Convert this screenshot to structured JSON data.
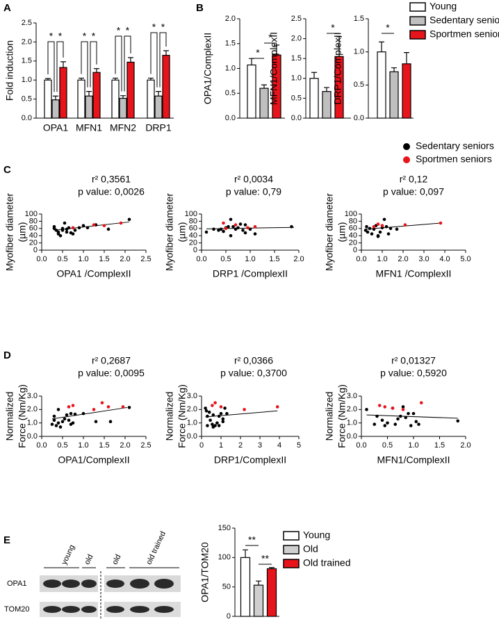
{
  "panel_labels": [
    "A",
    "B",
    "C",
    "D",
    "E"
  ],
  "chart_data": [
    {
      "type": "bar",
      "ylabel": "Fold induction",
      "categories": [
        "OPA1",
        "MFN1",
        "MFN2",
        "DRP1"
      ],
      "ylim": [
        0,
        2.5
      ],
      "yticks": [
        {
          "value": 0,
          "label": "0.0"
        },
        0.5,
        {
          "value": 1,
          "label": "1.0"
        },
        1.5,
        {
          "value": 2,
          "label": "2.0"
        },
        2.5
      ],
      "series": [
        {
          "name": "Young",
          "color": "#ffffff",
          "values": [
            1.0,
            1.0,
            1.0,
            1.0
          ],
          "errors": [
            0.04,
            0.05,
            0.05,
            0.05
          ]
        },
        {
          "name": "Sedentary seniors",
          "color": "#bfbfbf",
          "values": [
            0.48,
            0.58,
            0.52,
            0.58
          ],
          "errors": [
            0.1,
            0.12,
            0.07,
            0.12
          ]
        },
        {
          "name": "Sportmen seniors",
          "color": "#e8141b",
          "values": [
            1.33,
            1.2,
            1.47,
            1.65
          ],
          "errors": [
            0.15,
            0.1,
            0.12,
            0.12
          ]
        }
      ],
      "annotations": [
        "*",
        "*",
        "*",
        "*",
        "*",
        "*",
        "*",
        "*"
      ]
    },
    {
      "type": "bar",
      "ylabel": "OPA1/ComplexII",
      "ylim": [
        0,
        2
      ],
      "yticks": [
        {
          "value": 0,
          "label": "0.0"
        },
        0.5,
        {
          "value": 1,
          "label": "1.0"
        },
        1.5,
        {
          "value": 2,
          "label": "2.0"
        }
      ],
      "series": [
        {
          "color": "#ffffff",
          "values": [
            1.07
          ],
          "errors": [
            0.13
          ]
        },
        {
          "color": "#bfbfbf",
          "values": [
            0.6
          ],
          "errors": [
            0.07
          ]
        },
        {
          "color": "#e8141b",
          "values": [
            1.27
          ],
          "errors": [
            0.2
          ]
        }
      ],
      "annotations": [
        "*",
        "*"
      ]
    },
    {
      "type": "bar",
      "ylabel": "MFN1/ComplexII",
      "ylim": [
        0,
        2.5
      ],
      "yticks": [
        {
          "value": 0,
          "label": "0.0"
        },
        0.5,
        {
          "value": 1,
          "label": "1.0"
        },
        1.5,
        {
          "value": 2,
          "label": "2.0"
        },
        2.5
      ],
      "series": [
        {
          "color": "#ffffff",
          "values": [
            1.0
          ],
          "errors": [
            0.15
          ]
        },
        {
          "color": "#bfbfbf",
          "values": [
            0.67
          ],
          "errors": [
            0.1
          ]
        },
        {
          "color": "#e8141b",
          "values": [
            1.55
          ],
          "errors": [
            0.5
          ]
        }
      ],
      "annotations": [
        "*"
      ]
    },
    {
      "type": "bar",
      "ylabel": "DRP1/ComplexII",
      "ylim": [
        0,
        1.5
      ],
      "yticks": [
        {
          "value": 0,
          "label": "0.0"
        },
        0.5,
        {
          "value": 1,
          "label": "1.0"
        },
        1.5
      ],
      "series": [
        {
          "color": "#ffffff",
          "values": [
            1.0
          ],
          "errors": [
            0.15
          ]
        },
        {
          "color": "#bfbfbf",
          "values": [
            0.7
          ],
          "errors": [
            0.06
          ]
        },
        {
          "color": "#e8141b",
          "values": [
            0.82
          ],
          "errors": [
            0.17
          ]
        }
      ],
      "annotations": [
        "*"
      ]
    },
    {
      "type": "scatter",
      "title": "r² 0,3561",
      "subtitle": "p value: 0,0026",
      "xlabel": "OPA1 /ComplexII",
      "ylabel": [
        "Myofiber diameter",
        "(µm)"
      ],
      "xlim": [
        0,
        2.5
      ],
      "xticks": [
        {
          "value": 0,
          "label": "0.0"
        },
        0.5,
        {
          "value": 1,
          "label": "1.0"
        },
        1.5,
        {
          "value": 2,
          "label": "2.0"
        },
        2.5
      ],
      "ylim": [
        0,
        100
      ],
      "yticks": [
        0,
        20,
        40,
        60,
        80,
        100
      ],
      "series": [
        {
          "name": "Sedentary seniors",
          "color": "#000000",
          "x": [
            0.3,
            0.35,
            0.4,
            0.4,
            0.45,
            0.5,
            0.5,
            0.55,
            0.6,
            0.6,
            0.65,
            0.7,
            0.75,
            0.8,
            0.9,
            1.0,
            1.1,
            1.3,
            1.6,
            2.1,
            0.3
          ],
          "values": [
            65,
            55,
            50,
            45,
            40,
            60,
            55,
            75,
            58,
            50,
            62,
            48,
            45,
            55,
            62,
            68,
            62,
            70,
            58,
            85,
            60
          ]
        },
        {
          "name": "Sportmen seniors",
          "color": "#e8141b",
          "x": [
            0.75,
            1.25,
            1.5,
            1.9
          ],
          "values": [
            62,
            70,
            68,
            75
          ]
        }
      ],
      "fit": {
        "x": [
          0.3,
          2.1
        ],
        "values": [
          55,
          78
        ]
      }
    },
    {
      "type": "scatter",
      "title": "r² 0,0034",
      "subtitle": "p value: 0,79",
      "xlabel": "DRP1 /ComplexII",
      "ylabel": [
        "Myofiber diameter",
        "(µm)"
      ],
      "xlim": [
        0,
        2
      ],
      "xticks": [
        {
          "value": 0,
          "label": "0.0"
        },
        0.5,
        {
          "value": 1,
          "label": "1.0"
        },
        1.5,
        {
          "value": 2,
          "label": "2.0"
        }
      ],
      "ylim": [
        0,
        100
      ],
      "yticks": [
        0,
        20,
        40,
        60,
        80,
        100
      ],
      "series": [
        {
          "color": "#000000",
          "x": [
            0.1,
            0.25,
            0.35,
            0.4,
            0.45,
            0.5,
            0.55,
            0.6,
            0.65,
            0.7,
            0.75,
            0.8,
            0.85,
            0.9,
            1.0,
            1.1,
            0.6,
            0.9,
            1.85
          ],
          "values": [
            50,
            58,
            55,
            58,
            52,
            62,
            65,
            40,
            65,
            58,
            62,
            72,
            55,
            48,
            58,
            45,
            85,
            70,
            65
          ]
        },
        {
          "color": "#e8141b",
          "x": [
            0.45,
            0.7,
            0.95,
            1.1,
            0.5
          ],
          "values": [
            75,
            70,
            62,
            65,
            60
          ]
        }
      ],
      "fit": {
        "x": [
          0.1,
          1.9
        ],
        "values": [
          59,
          63
        ]
      }
    },
    {
      "type": "scatter",
      "title": "r² 0,12",
      "subtitle": "p value: 0,097",
      "xlabel": "MFN1 /ComplexII",
      "ylabel": [
        "Myofiber diameter",
        "(µm)"
      ],
      "xlim": [
        0,
        5
      ],
      "xticks": [
        {
          "value": 0,
          "label": "0.0"
        },
        {
          "value": 1,
          "label": "1.0"
        },
        {
          "value": 2,
          "label": "2.0"
        },
        {
          "value": 3,
          "label": "3.0"
        },
        {
          "value": 4,
          "label": "4.0"
        },
        {
          "value": 5,
          "label": "5.0"
        }
      ],
      "ylim": [
        0,
        100
      ],
      "yticks": [
        0,
        20,
        40,
        60,
        80,
        100
      ],
      "series": [
        {
          "color": "#000000",
          "x": [
            0.2,
            0.3,
            0.4,
            0.5,
            0.6,
            0.7,
            0.8,
            0.9,
            1.0,
            1.1,
            1.2,
            1.3,
            1.4,
            1.7,
            0.25,
            0.8
          ],
          "values": [
            55,
            50,
            60,
            45,
            58,
            68,
            38,
            50,
            62,
            85,
            65,
            45,
            60,
            58,
            65,
            40
          ]
        },
        {
          "color": "#e8141b",
          "x": [
            0.6,
            0.8,
            1.0,
            2.1,
            3.8
          ],
          "values": [
            65,
            72,
            68,
            70,
            75
          ]
        }
      ],
      "fit": {
        "x": [
          0.2,
          3.8
        ],
        "values": [
          58,
          75
        ]
      }
    },
    {
      "type": "scatter",
      "title": "r² 0,2687",
      "subtitle": "p value: 0,0095",
      "xlabel": "OPA1/ComplexII",
      "ylabel": [
        "Normalized",
        "Force (Nm/Kg)"
      ],
      "xlim": [
        0,
        2.5
      ],
      "xticks": [
        {
          "value": 0,
          "label": "0.0"
        },
        0.5,
        {
          "value": 1,
          "label": "1.0"
        },
        1.5,
        {
          "value": 2,
          "label": "2.0"
        },
        2.5
      ],
      "ylim": [
        0,
        3
      ],
      "yticks": [
        {
          "value": 0,
          "label": "0.0"
        },
        {
          "value": 1,
          "label": "1.0"
        },
        {
          "value": 2,
          "label": "2.0"
        },
        {
          "value": 3,
          "label": "3.0"
        }
      ],
      "series": [
        {
          "color": "#000000",
          "x": [
            0.25,
            0.3,
            0.35,
            0.4,
            0.4,
            0.45,
            0.5,
            0.55,
            0.6,
            0.65,
            0.7,
            0.75,
            0.7,
            0.8,
            1.0,
            1.3,
            1.65,
            2.1,
            0.3
          ],
          "values": [
            0.9,
            1.2,
            0.8,
            1.0,
            2.0,
            0.7,
            1.1,
            1.3,
            1.6,
            1.2,
            0.9,
            1.0,
            1.7,
            1.65,
            1.7,
            1.1,
            1.1,
            2.15,
            1.5
          ]
        },
        {
          "color": "#e8141b",
          "x": [
            0.65,
            0.75,
            1.25,
            1.45,
            1.6,
            1.95
          ],
          "values": [
            2.2,
            2.3,
            2.0,
            2.5,
            2.2,
            2.2
          ]
        }
      ],
      "fit": {
        "x": [
          0.25,
          2.05
        ],
        "values": [
          1.3,
          2.15
        ]
      }
    },
    {
      "type": "scatter",
      "title": "r² 0,0366",
      "subtitle": "p value: 0,3700",
      "xlabel": "DRP1/ComplexII",
      "ylabel": [
        "Normalized",
        "Force (Nm/Kg)"
      ],
      "xlim": [
        0,
        5
      ],
      "xticks": [
        0,
        1,
        2,
        3,
        4,
        5
      ],
      "ylim": [
        0,
        3
      ],
      "yticks": [
        {
          "value": 0,
          "label": "0.0"
        },
        {
          "value": 1,
          "label": "1.0"
        },
        {
          "value": 2,
          "label": "2.0"
        },
        {
          "value": 3,
          "label": "3.0"
        }
      ],
      "series": [
        {
          "color": "#000000",
          "x": [
            0.2,
            0.3,
            0.3,
            0.4,
            0.45,
            0.55,
            0.6,
            0.7,
            0.8,
            0.9,
            1.0,
            1.1,
            1.2,
            1.3,
            0.25,
            0.6,
            1.1,
            0.9
          ],
          "values": [
            2.1,
            1.5,
            0.8,
            1.8,
            1.2,
            0.9,
            0.7,
            0.8,
            1.0,
            1.5,
            1.7,
            1.1,
            2.1,
            1.7,
            1.9,
            1.6,
            1.3,
            0.8
          ]
        },
        {
          "color": "#e8141b",
          "x": [
            0.55,
            0.7,
            1.0,
            2.2,
            3.9
          ],
          "values": [
            2.3,
            2.5,
            2.2,
            2.0,
            2.2
          ]
        }
      ],
      "fit": {
        "x": [
          0.2,
          3.9
        ],
        "values": [
          1.45,
          1.9
        ]
      }
    },
    {
      "type": "scatter",
      "title": "r² 0,01327",
      "subtitle": "p value: 0,5920",
      "xlabel": "MFN1/ComplexII",
      "ylabel": [
        "Normalized",
        "Force (Nm/Kg)"
      ],
      "xlim": [
        0,
        2
      ],
      "xticks": [
        {
          "value": 0,
          "label": "0.0"
        },
        0.5,
        {
          "value": 1,
          "label": "1.0"
        },
        1.5,
        {
          "value": 2,
          "label": "2.0"
        }
      ],
      "ylim": [
        0,
        3
      ],
      "yticks": [
        {
          "value": 0,
          "label": "0.0"
        },
        {
          "value": 1,
          "label": "1.0"
        },
        {
          "value": 2,
          "label": "2.0"
        },
        {
          "value": 3,
          "label": "3.0"
        }
      ],
      "series": [
        {
          "color": "#000000",
          "x": [
            0.1,
            0.25,
            0.3,
            0.4,
            0.45,
            0.5,
            0.6,
            0.7,
            0.75,
            0.8,
            0.85,
            0.9,
            0.95,
            1.0,
            1.05,
            1.1,
            1.85,
            0.65
          ],
          "values": [
            2.0,
            0.9,
            1.5,
            1.2,
            0.8,
            1.0,
            2.1,
            1.3,
            1.5,
            2.2,
            1.4,
            1.7,
            0.8,
            1.7,
            1.1,
            0.9,
            1.15,
            0.9
          ]
        },
        {
          "color": "#e8141b",
          "x": [
            0.35,
            0.45,
            0.6,
            0.8,
            1.15
          ],
          "values": [
            2.3,
            2.2,
            2.1,
            2.0,
            2.5
          ]
        }
      ],
      "fit": {
        "x": [
          0.1,
          1.85
        ],
        "values": [
          1.6,
          1.35
        ]
      }
    },
    {
      "type": "bar",
      "ylabel": "OPA1/TOM20",
      "ylim": [
        0,
        150
      ],
      "yticks": [
        0,
        50,
        100,
        150
      ],
      "series": [
        {
          "name": "Young",
          "color": "#ffffff",
          "values": [
            100
          ],
          "errors": [
            13
          ]
        },
        {
          "name": "Old",
          "color": "#cfcfcf",
          "values": [
            53
          ],
          "errors": [
            7
          ]
        },
        {
          "name": "Old trained",
          "color": "#e8141b",
          "values": [
            81
          ],
          "errors": [
            2
          ]
        }
      ],
      "annotations": [
        "**",
        "**"
      ]
    }
  ],
  "blot": {
    "lanes": [
      "young",
      "old",
      "old",
      "old trained"
    ],
    "rows": [
      "OPA1",
      "TOM20"
    ]
  }
}
